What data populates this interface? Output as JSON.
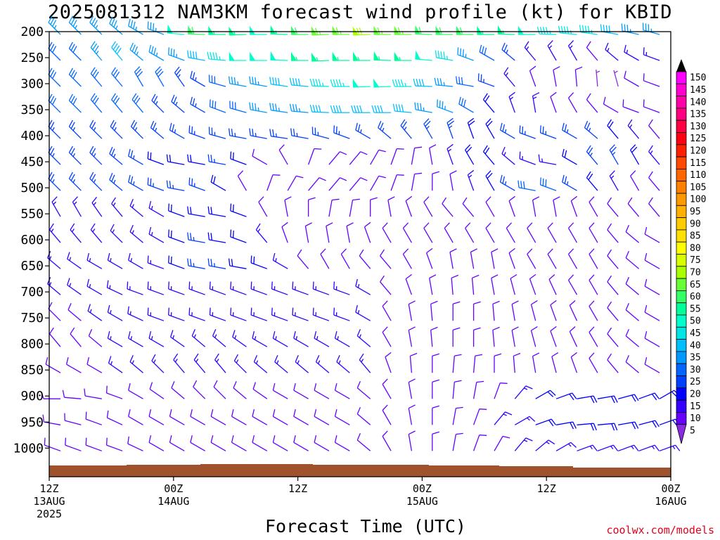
{
  "chart_data": {
    "type": "wind-barb-profile",
    "title": "2025081312 NAM3KM forecast wind profile (kt) for KBID",
    "xlabel": "Forecast Time (UTC)",
    "credit": "coolwx.com/models",
    "pressure_levels": [
      200,
      250,
      300,
      350,
      400,
      450,
      500,
      550,
      600,
      650,
      700,
      750,
      800,
      850,
      900,
      950,
      1000
    ],
    "y_axis_reversed": true,
    "xlim_hours": [
      0,
      60
    ],
    "x_ticks": [
      {
        "hour": 0,
        "label": "12Z",
        "date": "13AUG",
        "year": "2025"
      },
      {
        "hour": 12,
        "label": "00Z",
        "date": "14AUG",
        "year": ""
      },
      {
        "hour": 24,
        "label": "12Z",
        "date": "",
        "year": ""
      },
      {
        "hour": 36,
        "label": "00Z",
        "date": "15AUG",
        "year": ""
      },
      {
        "hour": 48,
        "label": "12Z",
        "date": "",
        "year": ""
      },
      {
        "hour": 60,
        "label": "00Z",
        "date": "16AUG",
        "year": ""
      }
    ],
    "colorbar": {
      "min": 5,
      "max": 150,
      "step": 5,
      "labels": [
        "150",
        "145",
        "140",
        "135",
        "130",
        "125",
        "120",
        "115",
        "110",
        "105",
        "100",
        "95",
        "90",
        "85",
        "80",
        "75",
        "70",
        "65",
        "60",
        "55",
        "50",
        "45",
        "40",
        "35",
        "30",
        "25",
        "20",
        "15",
        "10",
        "5"
      ],
      "colors": [
        "#ff00ff",
        "#ff00d0",
        "#ff00a8",
        "#ff0080",
        "#ff0040",
        "#ff0010",
        "#ff2000",
        "#ff4800",
        "#ff6600",
        "#ff7f00",
        "#ff9900",
        "#ffb000",
        "#ffcc00",
        "#ffe000",
        "#ffff00",
        "#d8ff00",
        "#aaff00",
        "#66ff33",
        "#33ff66",
        "#00ff99",
        "#00ffcc",
        "#00e6e6",
        "#00bfff",
        "#0099ff",
        "#0066ff",
        "#0040ff",
        "#0000ff",
        "#3300ff",
        "#6600ff",
        "#8a2be2"
      ]
    },
    "terrain_color": "#a0522d",
    "wind_profiles": [
      {
        "level": 200,
        "dir": [
          315,
          315,
          315,
          310,
          300,
          290,
          275,
          272,
          270,
          268,
          270,
          272,
          270,
          268,
          270,
          268,
          270,
          270,
          272,
          270,
          270,
          270,
          272,
          270,
          272,
          275,
          278,
          280,
          282,
          285
        ],
        "spd": [
          35,
          35,
          35,
          35,
          35,
          35,
          50,
          60,
          55,
          55,
          50,
          55,
          60,
          65,
          65,
          70,
          65,
          65,
          60,
          60,
          60,
          55,
          55,
          50,
          45,
          45,
          45,
          40,
          35,
          35
        ]
      },
      {
        "level": 250,
        "dir": [
          315,
          315,
          320,
          320,
          310,
          300,
          290,
          280,
          275,
          270,
          270,
          272,
          270,
          268,
          270,
          270,
          272,
          270,
          275,
          280,
          290,
          300,
          310,
          320,
          330,
          330,
          320,
          310,
          300,
          290
        ],
        "spd": [
          30,
          30,
          35,
          40,
          35,
          35,
          35,
          40,
          45,
          50,
          50,
          50,
          55,
          55,
          55,
          55,
          55,
          55,
          50,
          45,
          35,
          30,
          25,
          15,
          15,
          15,
          10,
          15,
          15,
          15
        ]
      },
      {
        "level": 300,
        "dir": [
          315,
          315,
          320,
          320,
          330,
          330,
          325,
          300,
          285,
          280,
          280,
          278,
          275,
          272,
          270,
          268,
          268,
          270,
          272,
          275,
          280,
          290,
          320,
          340,
          350,
          355,
          355,
          345,
          300,
          290
        ],
        "spd": [
          30,
          30,
          30,
          30,
          30,
          30,
          25,
          25,
          30,
          35,
          35,
          40,
          40,
          45,
          45,
          50,
          50,
          45,
          40,
          35,
          30,
          25,
          15,
          10,
          10,
          10,
          5,
          5,
          10,
          10
        ]
      },
      {
        "level": 350,
        "dir": [
          315,
          315,
          320,
          320,
          320,
          315,
          310,
          300,
          290,
          285,
          280,
          278,
          275,
          272,
          270,
          270,
          270,
          275,
          280,
          290,
          300,
          320,
          340,
          350,
          340,
          330,
          320,
          300,
          290,
          290
        ],
        "spd": [
          30,
          30,
          30,
          30,
          30,
          25,
          25,
          25,
          30,
          30,
          35,
          35,
          35,
          40,
          40,
          40,
          40,
          40,
          35,
          35,
          30,
          20,
          15,
          15,
          10,
          10,
          10,
          10,
          10,
          10
        ]
      },
      {
        "level": 400,
        "dir": [
          315,
          315,
          315,
          315,
          315,
          310,
          300,
          290,
          285,
          280,
          280,
          278,
          280,
          285,
          290,
          300,
          310,
          320,
          330,
          340,
          340,
          330,
          300,
          290,
          290,
          300,
          310,
          320,
          320,
          320
        ],
        "spd": [
          25,
          25,
          25,
          25,
          25,
          25,
          25,
          25,
          25,
          25,
          25,
          25,
          25,
          25,
          25,
          25,
          25,
          25,
          25,
          25,
          20,
          20,
          25,
          25,
          25,
          25,
          25,
          20,
          15,
          10
        ]
      },
      {
        "level": 450,
        "dir": [
          315,
          315,
          315,
          310,
          300,
          290,
          280,
          280,
          280,
          290,
          300,
          330,
          20,
          40,
          40,
          30,
          20,
          10,
          350,
          340,
          330,
          320,
          310,
          290,
          280,
          300,
          320,
          330,
          330,
          320
        ],
        "spd": [
          25,
          25,
          25,
          25,
          25,
          20,
          20,
          20,
          25,
          20,
          10,
          10,
          10,
          10,
          10,
          10,
          10,
          10,
          10,
          15,
          20,
          20,
          15,
          15,
          15,
          20,
          25,
          25,
          20,
          15
        ]
      },
      {
        "level": 500,
        "dir": [
          315,
          315,
          315,
          310,
          300,
          290,
          280,
          290,
          300,
          330,
          20,
          30,
          40,
          40,
          40,
          30,
          20,
          10,
          0,
          350,
          340,
          330,
          300,
          280,
          290,
          300,
          320,
          330,
          330,
          320
        ],
        "spd": [
          25,
          25,
          25,
          25,
          25,
          25,
          25,
          25,
          20,
          10,
          10,
          10,
          10,
          10,
          10,
          10,
          10,
          10,
          10,
          10,
          15,
          20,
          25,
          30,
          30,
          25,
          20,
          15,
          10,
          10
        ]
      },
      {
        "level": 550,
        "dir": [
          330,
          330,
          325,
          320,
          310,
          300,
          290,
          280,
          280,
          290,
          330,
          350,
          0,
          10,
          10,
          0,
          350,
          340,
          330,
          320,
          320,
          330,
          340,
          350,
          350,
          340,
          330,
          320,
          320,
          320
        ],
        "spd": [
          15,
          15,
          15,
          15,
          15,
          15,
          20,
          20,
          20,
          20,
          10,
          10,
          10,
          10,
          10,
          10,
          10,
          10,
          10,
          10,
          10,
          10,
          10,
          10,
          10,
          10,
          10,
          10,
          10,
          10
        ]
      },
      {
        "level": 600,
        "dir": [
          320,
          320,
          320,
          315,
          310,
          300,
          290,
          280,
          280,
          290,
          320,
          340,
          350,
          350,
          350,
          340,
          330,
          330,
          330,
          330,
          330,
          330,
          330,
          330,
          330,
          330,
          330,
          320,
          310,
          300
        ],
        "spd": [
          15,
          15,
          15,
          15,
          15,
          15,
          20,
          25,
          20,
          20,
          15,
          10,
          10,
          10,
          10,
          10,
          10,
          10,
          10,
          10,
          10,
          10,
          10,
          10,
          10,
          10,
          10,
          10,
          10,
          10
        ]
      },
      {
        "level": 650,
        "dir": [
          310,
          305,
          300,
          300,
          300,
          290,
          290,
          280,
          280,
          280,
          290,
          300,
          320,
          330,
          330,
          320,
          320,
          330,
          340,
          350,
          350,
          350,
          340,
          330,
          330,
          330,
          330,
          320,
          310,
          300
        ],
        "spd": [
          15,
          15,
          15,
          15,
          15,
          15,
          20,
          25,
          25,
          20,
          20,
          15,
          10,
          10,
          10,
          10,
          10,
          10,
          10,
          10,
          10,
          10,
          10,
          10,
          10,
          10,
          10,
          10,
          10,
          10
        ]
      },
      {
        "level": 700,
        "dir": [
          310,
          305,
          300,
          295,
          290,
          290,
          290,
          290,
          290,
          290,
          290,
          290,
          290,
          290,
          290,
          300,
          320,
          340,
          350,
          355,
          355,
          350,
          345,
          340,
          335,
          330,
          330,
          320,
          310,
          300
        ],
        "spd": [
          15,
          15,
          15,
          15,
          15,
          15,
          15,
          15,
          15,
          15,
          15,
          15,
          15,
          15,
          15,
          15,
          10,
          10,
          10,
          10,
          10,
          10,
          10,
          10,
          10,
          10,
          10,
          10,
          10,
          10
        ]
      },
      {
        "level": 750,
        "dir": [
          315,
          310,
          305,
          300,
          295,
          290,
          290,
          290,
          290,
          290,
          290,
          290,
          290,
          290,
          290,
          300,
          330,
          350,
          355,
          0,
          0,
          355,
          350,
          345,
          340,
          335,
          330,
          320,
          310,
          300
        ],
        "spd": [
          10,
          10,
          15,
          15,
          15,
          15,
          15,
          15,
          15,
          15,
          15,
          15,
          15,
          15,
          15,
          15,
          10,
          10,
          10,
          10,
          10,
          10,
          10,
          10,
          10,
          10,
          10,
          10,
          10,
          10
        ]
      },
      {
        "level": 800,
        "dir": [
          320,
          320,
          310,
          300,
          300,
          300,
          305,
          310,
          310,
          305,
          300,
          300,
          300,
          300,
          300,
          310,
          330,
          350,
          355,
          0,
          0,
          355,
          350,
          345,
          340,
          335,
          330,
          320,
          310,
          300
        ],
        "spd": [
          10,
          10,
          10,
          15,
          15,
          15,
          15,
          15,
          15,
          15,
          15,
          15,
          15,
          15,
          15,
          15,
          10,
          10,
          10,
          10,
          10,
          10,
          10,
          10,
          10,
          10,
          10,
          10,
          10,
          10
        ]
      },
      {
        "level": 850,
        "dir": [
          300,
          300,
          300,
          305,
          310,
          315,
          320,
          320,
          320,
          315,
          310,
          310,
          310,
          310,
          310,
          320,
          340,
          355,
          0,
          5,
          5,
          0,
          355,
          350,
          345,
          340,
          330,
          320,
          310,
          300
        ],
        "spd": [
          10,
          10,
          10,
          15,
          15,
          15,
          15,
          15,
          15,
          15,
          15,
          15,
          15,
          15,
          15,
          15,
          10,
          10,
          10,
          10,
          10,
          10,
          10,
          10,
          10,
          10,
          10,
          10,
          10,
          10
        ]
      },
      {
        "level": 900,
        "dir": [
          270,
          275,
          280,
          290,
          300,
          305,
          310,
          315,
          315,
          310,
          305,
          300,
          300,
          300,
          300,
          310,
          330,
          350,
          0,
          5,
          10,
          20,
          40,
          60,
          70,
          80,
          80,
          75,
          70,
          60
        ],
        "spd": [
          10,
          10,
          10,
          10,
          10,
          10,
          10,
          10,
          10,
          10,
          10,
          10,
          10,
          10,
          10,
          10,
          10,
          10,
          10,
          10,
          10,
          10,
          15,
          20,
          20,
          20,
          20,
          20,
          20,
          20
        ]
      },
      {
        "level": 950,
        "dir": [
          280,
          285,
          290,
          295,
          300,
          300,
          300,
          300,
          300,
          300,
          300,
          300,
          300,
          300,
          300,
          310,
          330,
          350,
          0,
          10,
          20,
          40,
          60,
          70,
          80,
          85,
          85,
          80,
          75,
          70
        ],
        "spd": [
          10,
          10,
          10,
          10,
          10,
          10,
          10,
          10,
          10,
          10,
          10,
          10,
          10,
          10,
          10,
          10,
          10,
          10,
          10,
          10,
          10,
          15,
          15,
          20,
          20,
          20,
          20,
          20,
          20,
          20
        ]
      },
      {
        "level": 1000,
        "dir": [
          290,
          290,
          290,
          290,
          295,
          300,
          300,
          300,
          300,
          300,
          300,
          300,
          300,
          300,
          300,
          310,
          330,
          350,
          0,
          10,
          20,
          30,
          40,
          50,
          60,
          70,
          70,
          70,
          70,
          70
        ],
        "spd": [
          10,
          10,
          10,
          10,
          10,
          10,
          10,
          10,
          10,
          10,
          10,
          10,
          10,
          10,
          10,
          10,
          10,
          10,
          10,
          10,
          10,
          10,
          15,
          15,
          15,
          15,
          15,
          15,
          15,
          15
        ]
      }
    ]
  }
}
